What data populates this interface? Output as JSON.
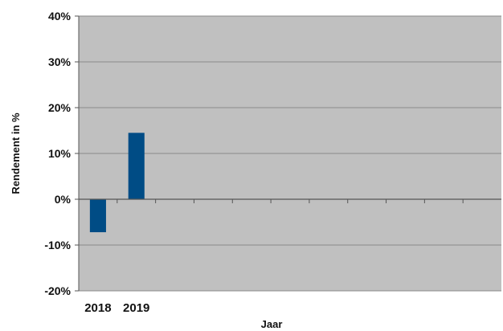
{
  "chart_data": {
    "type": "bar",
    "categories": [
      "2018",
      "2019",
      "",
      "",
      "",
      "",
      "",
      "",
      "",
      "",
      ""
    ],
    "series": [
      {
        "values": [
          -7.2,
          14.5,
          null,
          null,
          null,
          null,
          null,
          null,
          null,
          null,
          null
        ]
      }
    ],
    "xlabel": "Jaar",
    "ylabel": "Rendement in %",
    "ylim": [
      -20,
      40
    ],
    "yticks": [
      "40%",
      "30%",
      "20%",
      "10%",
      "0%",
      "-10%",
      "-20%"
    ],
    "grid": true,
    "legend": "none"
  },
  "colors": {
    "plot_background": "#c0c0c0",
    "bar": "#004c85",
    "gridline": "#8a8a8a",
    "axis": "#555555"
  }
}
